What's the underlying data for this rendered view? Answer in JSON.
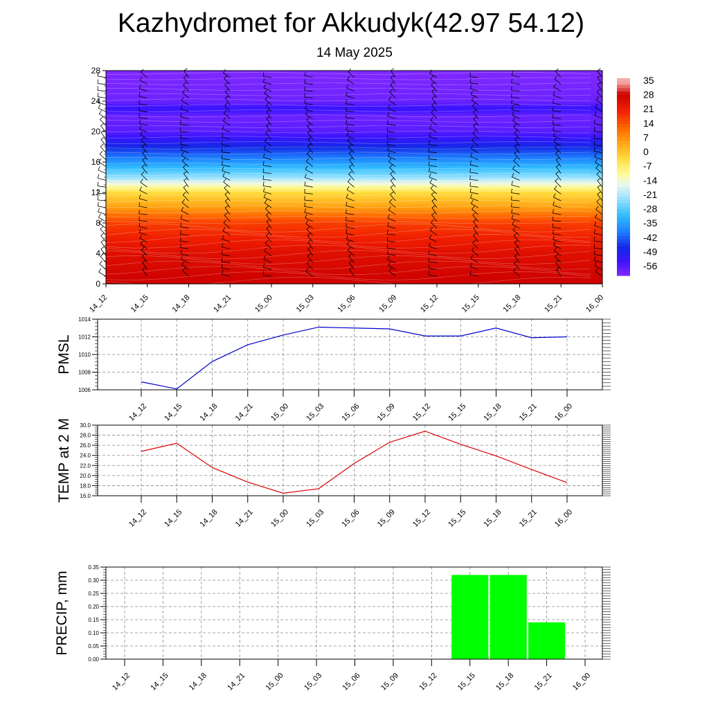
{
  "title": "Kazhydromet for Akkudyk(42.97 54.12)",
  "subtitle": "14 May 2025",
  "time_labels": [
    "14_12",
    "14_15",
    "14_18",
    "14_21",
    "15_00",
    "15_03",
    "15_06",
    "15_09",
    "15_12",
    "15_15",
    "15_18",
    "15_21",
    "16_00"
  ],
  "colors": {
    "pmsl_line": "#0000cc",
    "temp_line": "#dd0000",
    "precip_bar": "#00ff00"
  },
  "chart_data": [
    {
      "type": "heatmap",
      "name": "temperature-wind-cross-section",
      "x_ticks": [
        "14_12",
        "14_15",
        "14_18",
        "14_21",
        "15_00",
        "15_03",
        "15_06",
        "15_09",
        "15_12",
        "15_15",
        "15_18",
        "15_21",
        "16_00"
      ],
      "y_ticks": [
        0,
        4,
        8,
        12,
        16,
        20,
        24,
        28
      ],
      "ylim": [
        0,
        28
      ],
      "colorbar_ticks": [
        "35",
        "28",
        "21",
        "14",
        "7",
        "0",
        "-7",
        "-14",
        "-21",
        "-28",
        "-35",
        "-42",
        "-49",
        "-56"
      ],
      "colorbar_range": [
        -60,
        38
      ],
      "temperature_by_level": [
        {
          "level": 0,
          "value": 30
        },
        {
          "level": 4,
          "value": 26
        },
        {
          "level": 8,
          "value": 18
        },
        {
          "level": 10,
          "value": 7
        },
        {
          "level": 12,
          "value": -2
        },
        {
          "level": 13,
          "value": -12
        },
        {
          "level": 14,
          "value": -22
        },
        {
          "level": 16,
          "value": -35
        },
        {
          "level": 18,
          "value": -46
        },
        {
          "level": 20,
          "value": -56
        },
        {
          "level": 22,
          "value": -58
        },
        {
          "level": 23,
          "value": -52
        },
        {
          "level": 24,
          "value": -58
        },
        {
          "level": 28,
          "value": -60
        }
      ],
      "wind_barbs": "present at every time step and level"
    },
    {
      "type": "line",
      "name": "pmsl",
      "ylabel": "PMSL",
      "categories": [
        "14_12",
        "14_15",
        "14_18",
        "14_21",
        "15_00",
        "15_03",
        "15_06",
        "15_09",
        "15_12",
        "15_15",
        "15_18",
        "15_21",
        "16_00"
      ],
      "values": [
        1006.9,
        1006.1,
        1009.2,
        1011.1,
        1012.2,
        1013.1,
        1013.0,
        1012.9,
        1012.1,
        1012.1,
        1013.0,
        1011.9,
        1012.0
      ],
      "ylim": [
        1006,
        1014
      ],
      "y_ticks": [
        1006,
        1008,
        1010,
        1012,
        1014
      ]
    },
    {
      "type": "line",
      "name": "temp-2m",
      "ylabel": "TEMP at 2 M",
      "categories": [
        "14_12",
        "14_15",
        "14_18",
        "14_21",
        "15_00",
        "15_03",
        "15_06",
        "15_09",
        "15_12",
        "15_15",
        "15_18",
        "15_21",
        "16_00"
      ],
      "values": [
        24.8,
        26.4,
        21.6,
        18.7,
        16.5,
        17.4,
        22.4,
        26.6,
        28.8,
        26.2,
        23.9,
        21.2,
        18.6
      ],
      "ylim": [
        16,
        30
      ],
      "y_ticks": [
        "16.0",
        "18.0",
        "20.0",
        "22.0",
        "24.0",
        "26.0",
        "28.0",
        "30.0"
      ]
    },
    {
      "type": "bar",
      "name": "precip",
      "ylabel": "PRECIP, mm",
      "categories": [
        "14_12",
        "14_15",
        "14_18",
        "14_21",
        "15_00",
        "15_03",
        "15_06",
        "15_09",
        "15_12",
        "15_15",
        "15_18",
        "15_21",
        "16_00"
      ],
      "values": [
        0,
        0,
        0,
        0,
        0,
        0,
        0,
        0,
        0,
        0.32,
        0.32,
        0.14,
        0
      ],
      "ylim": [
        0,
        0.35
      ],
      "y_ticks": [
        "0.00",
        "0.05",
        "0.10",
        "0.15",
        "0.20",
        "0.25",
        "0.30",
        "0.35"
      ]
    }
  ]
}
